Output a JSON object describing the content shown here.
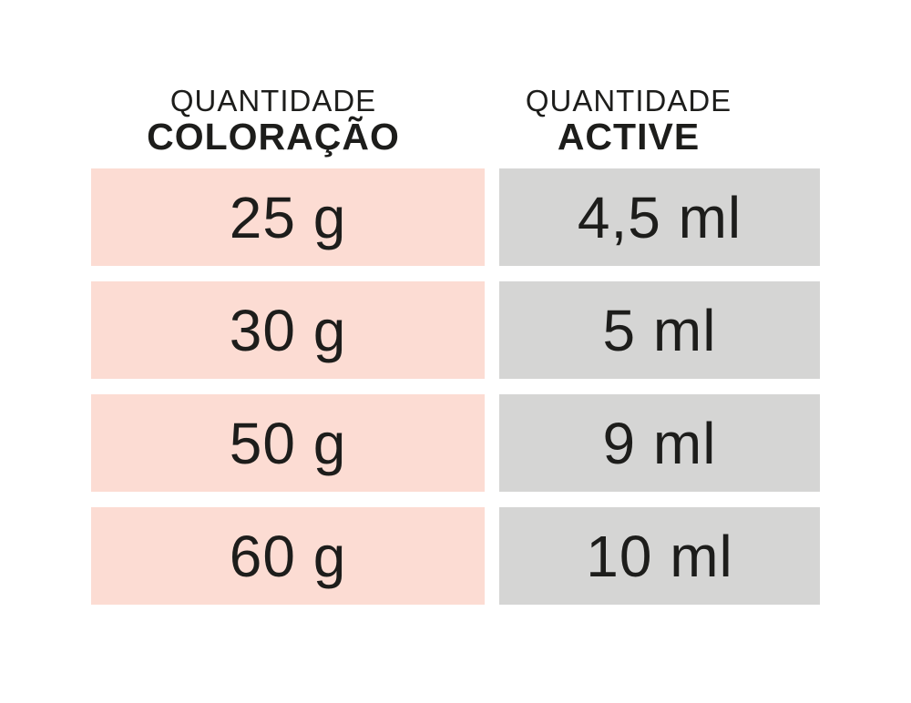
{
  "colors": {
    "coloracao_bg": "#fcdcd3",
    "active_bg": "#d5d5d4",
    "text": "#1d1d1b"
  },
  "table": {
    "left_header": {
      "line1": "QUANTIDADE",
      "line2": "COLORAÇÃO"
    },
    "right_header": {
      "line1": "QUANTIDADE",
      "line2": "ACTIVE"
    },
    "rows": [
      {
        "coloracao": "25 g",
        "active": "4,5 ml"
      },
      {
        "coloracao": "30 g",
        "active": "5 ml"
      },
      {
        "coloracao": "50 g",
        "active": "9 ml"
      },
      {
        "coloracao": "60 g",
        "active": "10 ml"
      }
    ]
  },
  "chart_data": {
    "type": "table",
    "columns": [
      "QUANTIDADE COLORAÇÃO",
      "QUANTIDADE ACTIVE"
    ],
    "rows": [
      [
        "25 g",
        "4,5 ml"
      ],
      [
        "30 g",
        "5 ml"
      ],
      [
        "50 g",
        "9 ml"
      ],
      [
        "60 g",
        "10 ml"
      ]
    ]
  }
}
